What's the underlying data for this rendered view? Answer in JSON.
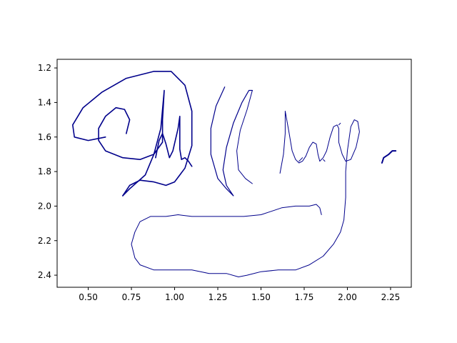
{
  "chart_data": {
    "type": "line",
    "title": "",
    "xlabel": "",
    "ylabel": "",
    "xlim": [
      0.32,
      2.37
    ],
    "ylim": [
      2.47,
      1.15
    ],
    "y_inverted": true,
    "grid": false,
    "legend": "none",
    "line_color": "#00008b",
    "x_ticks": [
      0.5,
      0.75,
      1.0,
      1.25,
      1.5,
      1.75,
      2.0,
      2.25
    ],
    "x_tick_labels": [
      "0.50",
      "0.75",
      "1.00",
      "1.25",
      "1.50",
      "1.75",
      "2.00",
      "2.25"
    ],
    "y_ticks": [
      1.2,
      1.4,
      1.6,
      1.8,
      2.0,
      2.2,
      2.4
    ],
    "y_tick_labels": [
      "1.2",
      "1.4",
      "1.6",
      "1.8",
      "2.0",
      "2.2",
      "2.4"
    ],
    "strokes": [
      {
        "width": 1.6,
        "points": [
          [
            0.72,
            1.58
          ],
          [
            0.74,
            1.5
          ],
          [
            0.71,
            1.44
          ],
          [
            0.66,
            1.43
          ],
          [
            0.6,
            1.48
          ],
          [
            0.56,
            1.55
          ],
          [
            0.56,
            1.62
          ],
          [
            0.6,
            1.68
          ],
          [
            0.7,
            1.72
          ],
          [
            0.8,
            1.73
          ],
          [
            0.88,
            1.7
          ],
          [
            0.93,
            1.63
          ],
          [
            0.93,
            1.5
          ],
          [
            0.94,
            1.33
          ],
          [
            0.92,
            1.55
          ],
          [
            0.88,
            1.7
          ],
          [
            0.83,
            1.82
          ],
          [
            0.74,
            1.9
          ],
          [
            0.7,
            1.94
          ]
        ]
      },
      {
        "width": 1.6,
        "points": [
          [
            0.7,
            1.94
          ],
          [
            0.74,
            1.88
          ],
          [
            0.8,
            1.85
          ],
          [
            0.88,
            1.86
          ],
          [
            0.95,
            1.88
          ],
          [
            1.0,
            1.86
          ],
          [
            1.06,
            1.78
          ],
          [
            1.1,
            1.65
          ],
          [
            1.1,
            1.45
          ],
          [
            1.06,
            1.3
          ],
          [
            0.98,
            1.22
          ],
          [
            0.88,
            1.22
          ],
          [
            0.72,
            1.26
          ],
          [
            0.58,
            1.34
          ],
          [
            0.47,
            1.43
          ],
          [
            0.41,
            1.53
          ],
          [
            0.42,
            1.6
          ],
          [
            0.5,
            1.62
          ],
          [
            0.6,
            1.6
          ]
        ]
      },
      {
        "width": 1.6,
        "points": [
          [
            0.89,
            1.72
          ],
          [
            0.91,
            1.62
          ],
          [
            0.93,
            1.58
          ],
          [
            0.95,
            1.64
          ],
          [
            0.97,
            1.72
          ],
          [
            0.99,
            1.68
          ],
          [
            1.02,
            1.55
          ],
          [
            1.03,
            1.48
          ],
          [
            1.03,
            1.58
          ],
          [
            1.03,
            1.67
          ],
          [
            1.04,
            1.73
          ],
          [
            1.06,
            1.72
          ],
          [
            1.08,
            1.74
          ],
          [
            1.1,
            1.77
          ]
        ]
      },
      {
        "width": 1.2,
        "points": [
          [
            1.29,
            1.31
          ],
          [
            1.24,
            1.42
          ],
          [
            1.21,
            1.55
          ],
          [
            1.21,
            1.7
          ],
          [
            1.25,
            1.84
          ],
          [
            1.3,
            1.9
          ],
          [
            1.34,
            1.94
          ]
        ]
      },
      {
        "width": 1.2,
        "points": [
          [
            1.34,
            1.94
          ],
          [
            1.3,
            1.88
          ],
          [
            1.28,
            1.79
          ],
          [
            1.3,
            1.66
          ],
          [
            1.34,
            1.52
          ],
          [
            1.39,
            1.4
          ],
          [
            1.43,
            1.33
          ],
          [
            1.45,
            1.33
          ]
        ]
      },
      {
        "width": 1.0,
        "points": [
          [
            1.45,
            1.33
          ],
          [
            1.42,
            1.44
          ],
          [
            1.38,
            1.56
          ],
          [
            1.36,
            1.68
          ],
          [
            1.37,
            1.79
          ],
          [
            1.41,
            1.84
          ],
          [
            1.45,
            1.87
          ]
        ]
      },
      {
        "width": 1.0,
        "points": [
          [
            1.61,
            1.81
          ],
          [
            1.63,
            1.7
          ],
          [
            1.64,
            1.58
          ],
          [
            1.64,
            1.45
          ],
          [
            1.66,
            1.56
          ],
          [
            1.68,
            1.68
          ],
          [
            1.7,
            1.73
          ],
          [
            1.72,
            1.75
          ],
          [
            1.74,
            1.74
          ],
          [
            1.76,
            1.71
          ],
          [
            1.78,
            1.66
          ],
          [
            1.8,
            1.63
          ],
          [
            1.82,
            1.64
          ],
          [
            1.83,
            1.7
          ],
          [
            1.84,
            1.74
          ],
          [
            1.86,
            1.72
          ],
          [
            1.88,
            1.68
          ],
          [
            1.9,
            1.6
          ],
          [
            1.92,
            1.54
          ],
          [
            1.94,
            1.53
          ],
          [
            1.95,
            1.55
          ],
          [
            1.95,
            1.63
          ],
          [
            1.97,
            1.7
          ],
          [
            1.99,
            1.74
          ],
          [
            2.02,
            1.73
          ],
          [
            2.05,
            1.66
          ],
          [
            2.07,
            1.57
          ],
          [
            2.06,
            1.51
          ],
          [
            2.04,
            1.5
          ],
          [
            2.02,
            1.54
          ],
          [
            2.0,
            1.68
          ],
          [
            1.99,
            1.8
          ],
          [
            1.99,
            1.95
          ],
          [
            1.98,
            2.08
          ],
          [
            1.96,
            2.15
          ],
          [
            1.92,
            2.22
          ],
          [
            1.86,
            2.29
          ],
          [
            1.78,
            2.34
          ],
          [
            1.7,
            2.37
          ],
          [
            1.6,
            2.37
          ],
          [
            1.5,
            2.38
          ],
          [
            1.42,
            2.4
          ],
          [
            1.37,
            2.41
          ],
          [
            1.3,
            2.39
          ],
          [
            1.2,
            2.39
          ],
          [
            1.1,
            2.37
          ],
          [
            1.0,
            2.37
          ],
          [
            0.88,
            2.37
          ],
          [
            0.8,
            2.34
          ],
          [
            0.77,
            2.3
          ],
          [
            0.75,
            2.22
          ],
          [
            0.77,
            2.15
          ],
          [
            0.8,
            2.09
          ],
          [
            0.86,
            2.06
          ],
          [
            0.95,
            2.06
          ],
          [
            1.02,
            2.05
          ],
          [
            1.1,
            2.06
          ],
          [
            1.2,
            2.06
          ],
          [
            1.3,
            2.06
          ],
          [
            1.4,
            2.06
          ],
          [
            1.5,
            2.05
          ],
          [
            1.56,
            2.03
          ],
          [
            1.62,
            2.01
          ],
          [
            1.7,
            2.0
          ],
          [
            1.78,
            2.0
          ],
          [
            1.82,
            1.99
          ],
          [
            1.84,
            2.01
          ],
          [
            1.85,
            2.05
          ]
        ]
      },
      {
        "width": 1.0,
        "points": [
          [
            1.72,
            1.74
          ],
          [
            1.73,
            1.73
          ],
          [
            1.74,
            1.72
          ]
        ]
      },
      {
        "width": 1.0,
        "points": [
          [
            1.86,
            1.73
          ],
          [
            1.87,
            1.74
          ]
        ]
      },
      {
        "width": 1.0,
        "points": [
          [
            1.95,
            1.53
          ],
          [
            1.96,
            1.52
          ]
        ]
      },
      {
        "width": 2.0,
        "points": [
          [
            2.2,
            1.75
          ],
          [
            2.21,
            1.72
          ],
          [
            2.24,
            1.7
          ],
          [
            2.26,
            1.68
          ],
          [
            2.28,
            1.68
          ]
        ]
      }
    ]
  }
}
